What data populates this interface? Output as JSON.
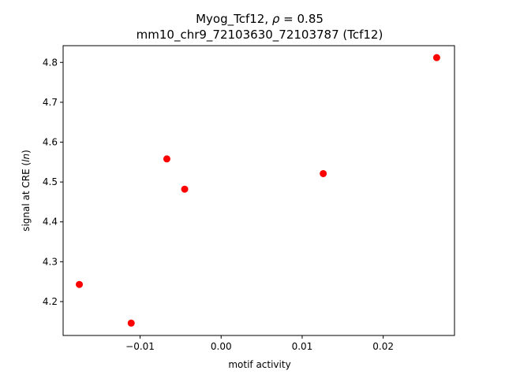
{
  "chart_data": {
    "type": "scatter",
    "title_line1": "Myog_Tcf12, ρ = 0.85",
    "title_line2": "mm10_chr9_72103630_72103787 (Tcf12)",
    "xlabel": "motif activity",
    "ylabel": "signal at CRE (ln)",
    "xlim": [
      -0.0195,
      0.0288
    ],
    "ylim": [
      4.115,
      4.842
    ],
    "xticks": [
      -0.01,
      0.0,
      0.01,
      0.02
    ],
    "xtick_labels": [
      "−0.01",
      "0.00",
      "0.01",
      "0.02"
    ],
    "yticks": [
      4.2,
      4.3,
      4.4,
      4.5,
      4.6,
      4.7,
      4.8
    ],
    "ytick_labels": [
      "4.2",
      "4.3",
      "4.4",
      "4.5",
      "4.6",
      "4.7",
      "4.8"
    ],
    "marker_color": "#ff0000",
    "grid": false,
    "legend": "none",
    "points": [
      {
        "x": -0.0175,
        "y": 4.243
      },
      {
        "x": -0.0111,
        "y": 4.146
      },
      {
        "x": -0.0067,
        "y": 4.558
      },
      {
        "x": -0.0045,
        "y": 4.482
      },
      {
        "x": 0.0126,
        "y": 4.521
      },
      {
        "x": 0.0266,
        "y": 4.812
      }
    ]
  }
}
